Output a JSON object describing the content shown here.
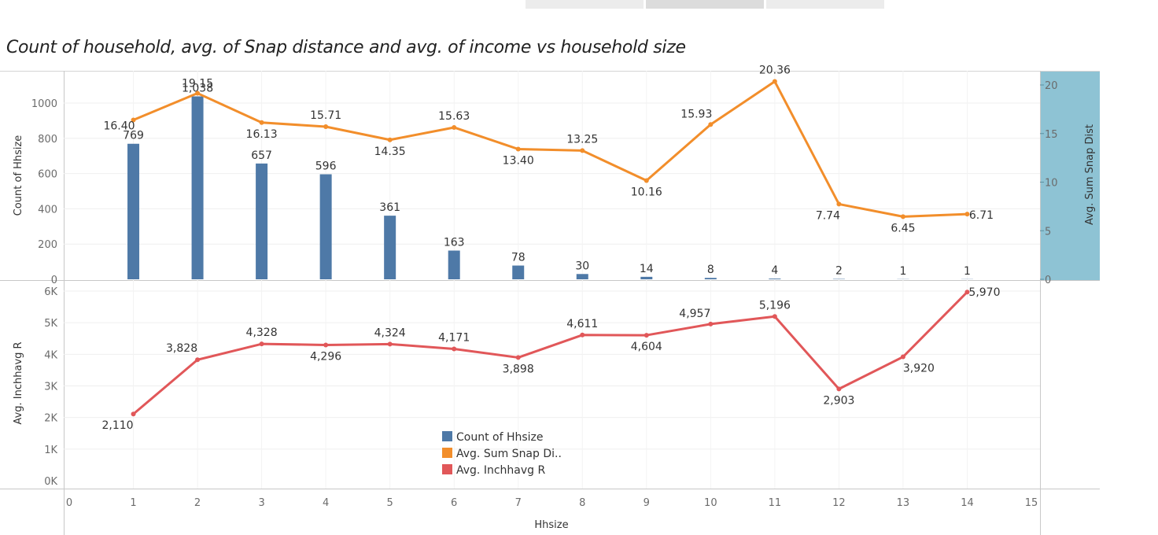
{
  "title": "Count of household, avg. of Snap distance and avg. of income vs household size",
  "colors": {
    "bar": "#4e79a7",
    "snap": "#f28e2b",
    "income": "#e15759",
    "axis_panel": "#8ec3d4"
  },
  "chart_data": {
    "type": "bar",
    "x": [
      1,
      2,
      3,
      4,
      5,
      6,
      7,
      8,
      9,
      10,
      11,
      12,
      13,
      14
    ],
    "xlabel": "Hhsize",
    "xlim": [
      0,
      15
    ],
    "x_ticks": [
      "0",
      "1",
      "2",
      "3",
      "4",
      "5",
      "6",
      "7",
      "8",
      "9",
      "10",
      "11",
      "12",
      "13",
      "14",
      "15"
    ],
    "series": [
      {
        "name": "Count of Hhsize",
        "type": "bar",
        "values": [
          769,
          1038,
          657,
          596,
          361,
          163,
          78,
          30,
          14,
          8,
          4,
          2,
          1,
          1
        ],
        "labels": [
          "769",
          "1,038",
          "657",
          "596",
          "361",
          "163",
          "78",
          "30",
          "14",
          "8",
          "4",
          "2",
          "1",
          "1"
        ]
      },
      {
        "name": "Avg. Sum Snap Di..",
        "type": "line",
        "values": [
          16.4,
          19.15,
          16.13,
          15.71,
          14.35,
          15.63,
          13.4,
          13.25,
          10.16,
          15.93,
          20.36,
          7.74,
          6.45,
          6.71
        ],
        "labels": [
          "16.40",
          "19.15",
          "16.13",
          "15.71",
          "14.35",
          "15.63",
          "13.40",
          "13.25",
          "10.16",
          "15.93",
          "20.36",
          "7.74",
          "6.45",
          "6.71"
        ]
      },
      {
        "name": "Avg. Inchhavg R",
        "type": "line",
        "values": [
          2110,
          3828,
          4328,
          4296,
          4324,
          4171,
          3898,
          4611,
          4604,
          4957,
          5196,
          2903,
          3920,
          5970
        ],
        "labels": [
          "2,110",
          "3,828",
          "4,328",
          "4,296",
          "4,324",
          "4,171",
          "3,898",
          "4,611",
          "4,604",
          "4,957",
          "5,196",
          "2,903",
          "3,920",
          "5,970"
        ]
      }
    ],
    "axes": {
      "top_left": {
        "label": "Count of Hhsize",
        "ylim": [
          0,
          1100
        ],
        "ticks": [
          0,
          200,
          400,
          600,
          800,
          1000
        ],
        "tick_labels": [
          "0",
          "200",
          "400",
          "600",
          "800",
          "1000"
        ]
      },
      "top_right": {
        "label": "Avg. Sum Snap Dist",
        "ylim": [
          0,
          21
        ],
        "ticks": [
          0,
          5,
          10,
          15,
          20
        ],
        "tick_labels": [
          "0",
          "5",
          "10",
          "15",
          "20"
        ]
      },
      "bottom_left": {
        "label": "Avg. Inchhavg R",
        "ylim": [
          0,
          6000
        ],
        "ticks": [
          0,
          1000,
          2000,
          3000,
          4000,
          5000,
          6000
        ],
        "tick_labels": [
          "0K",
          "1K",
          "2K",
          "3K",
          "4K",
          "5K",
          "6K"
        ]
      }
    },
    "legend": {
      "position": "bottom-center",
      "entries": [
        "Count of Hhsize",
        "Avg. Sum Snap Di..",
        "Avg. Inchhavg R"
      ]
    },
    "grid": true
  }
}
